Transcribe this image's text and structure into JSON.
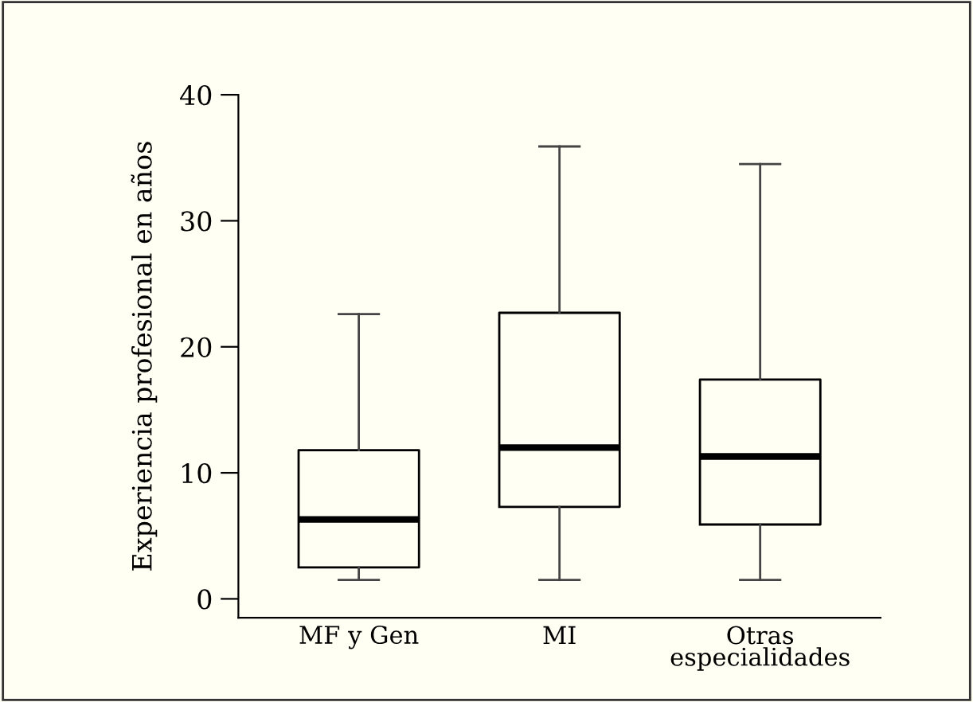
{
  "chart_data": {
    "type": "box",
    "ylabel": "Experiencia profesional en años",
    "categories": [
      "MF y Gen",
      "MI",
      "Otras\nespecialidades"
    ],
    "boxes": [
      {
        "low": 1.5,
        "q1": 2.5,
        "median": 6.3,
        "q3": 11.8,
        "high": 22.6
      },
      {
        "low": 1.5,
        "q1": 7.3,
        "median": 12.0,
        "q3": 22.7,
        "high": 35.9
      },
      {
        "low": 1.5,
        "q1": 5.9,
        "median": 11.3,
        "q3": 17.4,
        "high": 34.5
      }
    ],
    "ylim": [
      -1.5,
      40
    ],
    "yticks": [
      0,
      10,
      20,
      30,
      40
    ],
    "grid": false
  }
}
